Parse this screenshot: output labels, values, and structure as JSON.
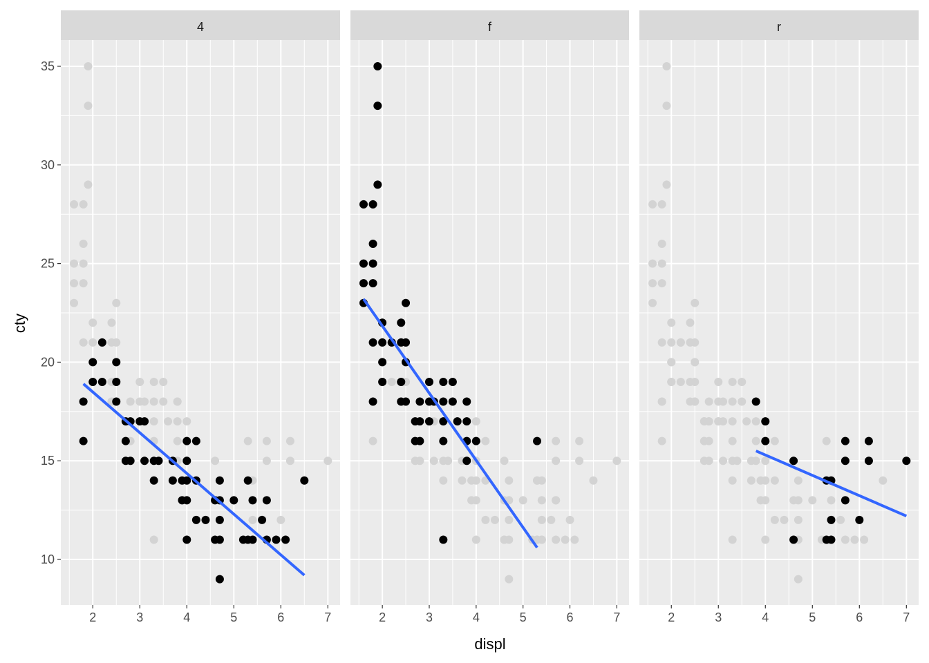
{
  "chart_data": {
    "type": "scatter",
    "xlabel": "displ",
    "ylabel": "cty",
    "xlim": [
      1.32,
      7.26
    ],
    "ylim": [
      7.69,
      36.33
    ],
    "x_ticks": [
      2,
      3,
      4,
      5,
      6,
      7
    ],
    "y_ticks": [
      10,
      15,
      20,
      25,
      30,
      35
    ],
    "grid": true,
    "colors": {
      "highlight": "#000000",
      "background_points": "#d3d3d3",
      "smooth": "#3366ff",
      "panel": "#ebebeb",
      "strip": "#d9d9d9"
    },
    "facets": [
      {
        "label": "4",
        "points": [
          [
            1.8,
            18
          ],
          [
            1.8,
            16
          ],
          [
            2.0,
            20
          ],
          [
            2.0,
            19
          ],
          [
            2.2,
            21
          ],
          [
            2.2,
            19
          ],
          [
            2.5,
            20
          ],
          [
            2.5,
            19
          ],
          [
            2.5,
            18
          ],
          [
            2.7,
            17
          ],
          [
            2.7,
            16
          ],
          [
            2.7,
            15
          ],
          [
            2.8,
            17
          ],
          [
            2.8,
            15
          ],
          [
            3.0,
            17
          ],
          [
            3.1,
            17
          ],
          [
            3.1,
            15
          ],
          [
            3.3,
            15
          ],
          [
            3.3,
            14
          ],
          [
            3.4,
            15
          ],
          [
            3.7,
            15
          ],
          [
            3.7,
            14
          ],
          [
            3.9,
            14
          ],
          [
            3.9,
            13
          ],
          [
            4.0,
            16
          ],
          [
            4.0,
            15
          ],
          [
            4.0,
            14
          ],
          [
            4.0,
            13
          ],
          [
            4.0,
            11
          ],
          [
            4.2,
            16
          ],
          [
            4.2,
            14
          ],
          [
            4.2,
            12
          ],
          [
            4.4,
            12
          ],
          [
            4.6,
            13
          ],
          [
            4.6,
            11
          ],
          [
            4.7,
            14
          ],
          [
            4.7,
            13
          ],
          [
            4.7,
            12
          ],
          [
            4.7,
            11
          ],
          [
            4.7,
            9
          ],
          [
            5.0,
            13
          ],
          [
            5.2,
            11
          ],
          [
            5.3,
            14
          ],
          [
            5.3,
            11
          ],
          [
            5.4,
            13
          ],
          [
            5.4,
            11
          ],
          [
            5.6,
            12
          ],
          [
            5.7,
            13
          ],
          [
            5.7,
            11
          ],
          [
            5.9,
            11
          ],
          [
            6.1,
            11
          ],
          [
            6.5,
            14
          ]
        ],
        "smooth": [
          [
            1.8,
            18.9
          ],
          [
            6.5,
            9.2
          ]
        ]
      },
      {
        "label": "f",
        "points": [
          [
            1.6,
            28
          ],
          [
            1.6,
            25
          ],
          [
            1.6,
            24
          ],
          [
            1.6,
            23
          ],
          [
            1.8,
            28
          ],
          [
            1.8,
            26
          ],
          [
            1.8,
            25
          ],
          [
            1.8,
            24
          ],
          [
            1.8,
            21
          ],
          [
            1.8,
            18
          ],
          [
            1.9,
            35
          ],
          [
            1.9,
            33
          ],
          [
            1.9,
            29
          ],
          [
            2.0,
            22
          ],
          [
            2.0,
            21
          ],
          [
            2.0,
            20
          ],
          [
            2.0,
            19
          ],
          [
            2.2,
            21
          ],
          [
            2.4,
            22
          ],
          [
            2.4,
            21
          ],
          [
            2.4,
            19
          ],
          [
            2.4,
            18
          ],
          [
            2.5,
            23
          ],
          [
            2.5,
            21
          ],
          [
            2.5,
            20
          ],
          [
            2.5,
            18
          ],
          [
            2.7,
            17
          ],
          [
            2.7,
            16
          ],
          [
            2.8,
            18
          ],
          [
            2.8,
            17
          ],
          [
            2.8,
            16
          ],
          [
            3.0,
            19
          ],
          [
            3.0,
            18
          ],
          [
            3.0,
            17
          ],
          [
            3.1,
            18
          ],
          [
            3.3,
            19
          ],
          [
            3.3,
            18
          ],
          [
            3.3,
            17
          ],
          [
            3.3,
            16
          ],
          [
            3.3,
            11
          ],
          [
            3.5,
            19
          ],
          [
            3.5,
            18
          ],
          [
            3.6,
            17
          ],
          [
            3.8,
            18
          ],
          [
            3.8,
            17
          ],
          [
            3.8,
            16
          ],
          [
            3.8,
            15
          ],
          [
            4.0,
            16
          ],
          [
            5.3,
            16
          ]
        ],
        "smooth": [
          [
            1.6,
            23.2
          ],
          [
            5.3,
            10.6
          ]
        ]
      },
      {
        "label": "r",
        "points": [
          [
            3.8,
            18
          ],
          [
            4.0,
            17
          ],
          [
            4.0,
            16
          ],
          [
            4.6,
            15
          ],
          [
            4.6,
            11
          ],
          [
            5.3,
            14
          ],
          [
            5.3,
            11
          ],
          [
            5.4,
            14
          ],
          [
            5.4,
            12
          ],
          [
            5.4,
            11
          ],
          [
            5.7,
            16
          ],
          [
            5.7,
            15
          ],
          [
            5.7,
            13
          ],
          [
            6.0,
            12
          ],
          [
            6.2,
            16
          ],
          [
            6.2,
            15
          ],
          [
            7.0,
            15
          ]
        ],
        "smooth": [
          [
            3.8,
            15.5
          ],
          [
            7.0,
            12.2
          ]
        ]
      }
    ]
  }
}
